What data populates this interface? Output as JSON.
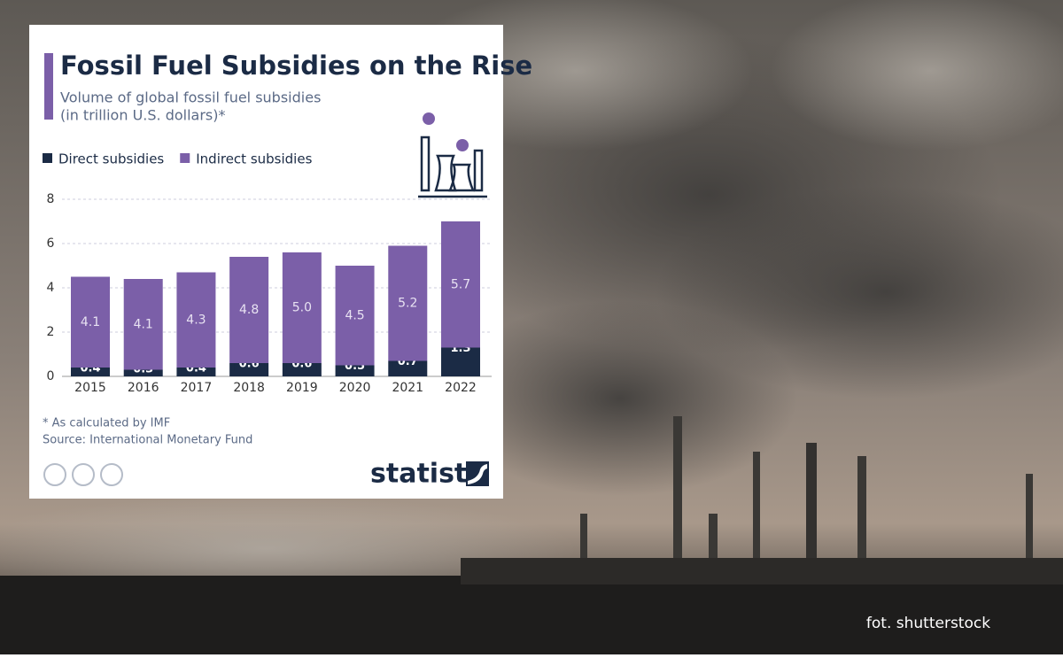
{
  "chart_data": {
    "type": "stacked_bar",
    "title": "Fossil Fuel Subsidies on the Rise",
    "subtitle": [
      "Volume of global fossil fuel subsidies",
      "(in trillion U.S. dollars)*"
    ],
    "categories": [
      "2015",
      "2016",
      "2017",
      "2018",
      "2019",
      "2020",
      "2021",
      "2022"
    ],
    "series": [
      {
        "name": "Direct subsidies",
        "color": "#1b2b45",
        "values": [
          0.4,
          0.3,
          0.4,
          0.6,
          0.6,
          0.5,
          0.7,
          1.3
        ]
      },
      {
        "name": "Indirect subsidies",
        "color": "#7b5fa8",
        "values": [
          4.1,
          4.1,
          4.3,
          4.8,
          5.0,
          4.5,
          5.2,
          5.7
        ],
        "value_labels": [
          "4.1",
          "4.1",
          "4.3",
          "4.8",
          "5.0",
          "4.5",
          "5.2",
          "5.7"
        ]
      }
    ],
    "ylim": [
      0,
      8
    ],
    "yticks": [
      0,
      2,
      4,
      6,
      8
    ],
    "grid": true,
    "footnote": "* As calculated by IMF",
    "source": "Source: International Monetary Fund",
    "brand": "statista"
  },
  "photo_credit": "fot. shutterstock"
}
